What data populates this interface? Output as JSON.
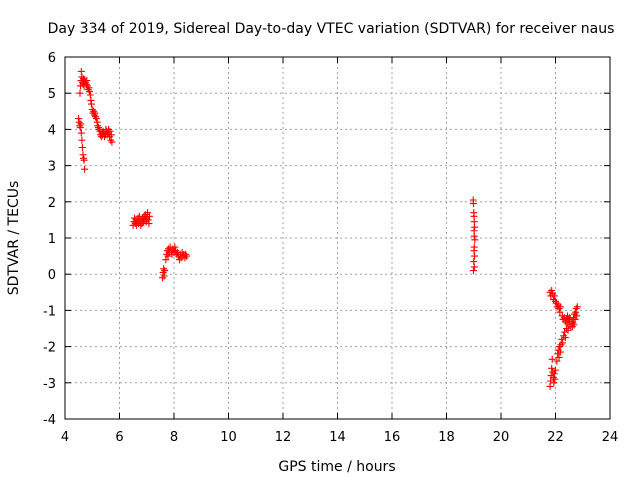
{
  "chart_data": {
    "type": "scatter",
    "title": "Day 334 of 2019, Sidereal Day-to-day VTEC variation (SDTVAR) for receiver naus",
    "xlabel": "GPS time / hours",
    "ylabel": "SDTVAR / TECUs",
    "xlim": [
      4,
      24
    ],
    "ylim": [
      -4,
      6
    ],
    "xticks": [
      4,
      6,
      8,
      10,
      12,
      14,
      16,
      18,
      20,
      22,
      24
    ],
    "yticks": [
      -4,
      -3,
      -2,
      -1,
      0,
      1,
      2,
      3,
      4,
      5,
      6
    ],
    "grid": true,
    "marker": "plus",
    "color": "#ff0000",
    "series": [
      {
        "name": "naus",
        "points": [
          [
            4.5,
            4.3
          ],
          [
            4.52,
            4.2
          ],
          [
            4.54,
            4.1
          ],
          [
            4.56,
            4.05
          ],
          [
            4.58,
            4.15
          ],
          [
            4.6,
            3.9
          ],
          [
            4.62,
            3.7
          ],
          [
            4.64,
            3.5
          ],
          [
            4.66,
            3.3
          ],
          [
            4.68,
            3.2
          ],
          [
            4.7,
            3.15
          ],
          [
            4.72,
            2.9
          ],
          [
            4.55,
            5.0
          ],
          [
            4.57,
            5.2
          ],
          [
            4.59,
            5.35
          ],
          [
            4.6,
            5.6
          ],
          [
            4.62,
            5.45
          ],
          [
            4.64,
            5.3
          ],
          [
            4.66,
            5.25
          ],
          [
            4.68,
            5.4
          ],
          [
            4.7,
            5.2
          ],
          [
            4.72,
            5.35
          ],
          [
            4.75,
            5.3
          ],
          [
            4.78,
            5.25
          ],
          [
            4.8,
            5.35
          ],
          [
            4.82,
            5.2
          ],
          [
            4.85,
            5.1
          ],
          [
            4.88,
            5.15
          ],
          [
            4.9,
            5.05
          ],
          [
            4.93,
            4.95
          ],
          [
            4.95,
            4.8
          ],
          [
            4.97,
            4.7
          ],
          [
            5.0,
            4.55
          ],
          [
            5.03,
            4.45
          ],
          [
            5.05,
            4.5
          ],
          [
            5.08,
            4.4
          ],
          [
            5.1,
            4.45
          ],
          [
            5.12,
            4.35
          ],
          [
            5.15,
            4.3
          ],
          [
            5.18,
            4.2
          ],
          [
            5.2,
            4.1
          ],
          [
            5.23,
            4.05
          ],
          [
            5.25,
            4.0
          ],
          [
            5.28,
            3.95
          ],
          [
            5.3,
            3.85
          ],
          [
            5.33,
            3.8
          ],
          [
            5.36,
            3.9
          ],
          [
            5.38,
            3.85
          ],
          [
            5.4,
            3.95
          ],
          [
            5.43,
            3.9
          ],
          [
            5.45,
            3.8
          ],
          [
            5.48,
            3.85
          ],
          [
            5.5,
            4.0
          ],
          [
            5.53,
            3.95
          ],
          [
            5.55,
            3.85
          ],
          [
            5.58,
            3.9
          ],
          [
            5.6,
            4.0
          ],
          [
            5.63,
            3.8
          ],
          [
            5.65,
            3.95
          ],
          [
            5.68,
            3.7
          ],
          [
            5.7,
            3.85
          ],
          [
            5.72,
            3.65
          ],
          [
            6.5,
            1.35
          ],
          [
            6.53,
            1.45
          ],
          [
            6.55,
            1.55
          ],
          [
            6.58,
            1.4
          ],
          [
            6.6,
            1.5
          ],
          [
            6.63,
            1.35
          ],
          [
            6.65,
            1.45
          ],
          [
            6.68,
            1.55
          ],
          [
            6.7,
            1.4
          ],
          [
            6.73,
            1.6
          ],
          [
            6.75,
            1.45
          ],
          [
            6.78,
            1.35
          ],
          [
            6.8,
            1.5
          ],
          [
            6.83,
            1.4
          ],
          [
            6.85,
            1.55
          ],
          [
            6.88,
            1.45
          ],
          [
            6.9,
            1.6
          ],
          [
            6.93,
            1.5
          ],
          [
            6.95,
            1.65
          ],
          [
            6.98,
            1.45
          ],
          [
            7.0,
            1.55
          ],
          [
            7.03,
            1.7
          ],
          [
            7.05,
            1.5
          ],
          [
            7.08,
            1.4
          ],
          [
            7.1,
            1.6
          ],
          [
            7.58,
            -0.1
          ],
          [
            7.6,
            0.05
          ],
          [
            7.62,
            0.15
          ],
          [
            7.64,
            -0.05
          ],
          [
            7.66,
            0.1
          ],
          [
            7.7,
            0.4
          ],
          [
            7.73,
            0.55
          ],
          [
            7.75,
            0.65
          ],
          [
            7.78,
            0.5
          ],
          [
            7.8,
            0.7
          ],
          [
            7.83,
            0.6
          ],
          [
            7.86,
            0.75
          ],
          [
            7.9,
            0.65
          ],
          [
            7.93,
            0.55
          ],
          [
            7.96,
            0.7
          ],
          [
            8.0,
            0.6
          ],
          [
            8.03,
            0.75
          ],
          [
            8.06,
            0.65
          ],
          [
            8.1,
            0.55
          ],
          [
            8.13,
            0.6
          ],
          [
            8.16,
            0.5
          ],
          [
            8.2,
            0.4
          ],
          [
            8.23,
            0.55
          ],
          [
            8.26,
            0.45
          ],
          [
            8.3,
            0.6
          ],
          [
            8.33,
            0.5
          ],
          [
            8.36,
            0.55
          ],
          [
            8.4,
            0.45
          ],
          [
            8.43,
            0.55
          ],
          [
            8.46,
            0.5
          ],
          [
            18.98,
            2.05
          ],
          [
            18.99,
            1.95
          ],
          [
            19.0,
            1.7
          ],
          [
            19.01,
            1.6
          ],
          [
            19.02,
            1.45
          ],
          [
            19.03,
            1.3
          ],
          [
            19.01,
            1.2
          ],
          [
            19.02,
            1.05
          ],
          [
            19.04,
            0.95
          ],
          [
            19.02,
            0.75
          ],
          [
            19.01,
            0.65
          ],
          [
            19.03,
            0.5
          ],
          [
            19.0,
            0.35
          ],
          [
            19.02,
            0.2
          ],
          [
            18.99,
            0.1
          ],
          [
            21.8,
            -3.1
          ],
          [
            21.82,
            -2.95
          ],
          [
            21.84,
            -2.8
          ],
          [
            21.86,
            -2.6
          ],
          [
            21.88,
            -2.35
          ],
          [
            21.9,
            -2.7
          ],
          [
            21.92,
            -2.85
          ],
          [
            21.94,
            -3.0
          ],
          [
            21.96,
            -2.75
          ],
          [
            21.98,
            -2.9
          ],
          [
            22.0,
            -2.65
          ],
          [
            21.8,
            -0.5
          ],
          [
            21.83,
            -0.6
          ],
          [
            21.86,
            -0.45
          ],
          [
            21.9,
            -0.55
          ],
          [
            21.93,
            -0.7
          ],
          [
            21.96,
            -0.6
          ],
          [
            22.0,
            -0.75
          ],
          [
            22.03,
            -0.8
          ],
          [
            22.06,
            -0.9
          ],
          [
            22.1,
            -0.85
          ],
          [
            22.13,
            -0.95
          ],
          [
            22.16,
            -1.05
          ],
          [
            22.18,
            -0.9
          ],
          [
            22.05,
            -2.4
          ],
          [
            22.08,
            -2.2
          ],
          [
            22.1,
            -2.1
          ],
          [
            22.13,
            -2.3
          ],
          [
            22.15,
            -2.0
          ],
          [
            22.18,
            -2.15
          ],
          [
            22.2,
            -1.95
          ],
          [
            22.23,
            -1.8
          ],
          [
            22.26,
            -1.9
          ],
          [
            22.3,
            -1.7
          ],
          [
            22.33,
            -1.6
          ],
          [
            22.36,
            -1.75
          ],
          [
            22.4,
            -1.5
          ],
          [
            22.43,
            -1.35
          ],
          [
            22.46,
            -1.55
          ],
          [
            22.5,
            -1.4
          ],
          [
            22.53,
            -1.25
          ],
          [
            22.56,
            -1.45
          ],
          [
            22.6,
            -1.3
          ],
          [
            22.25,
            -1.15
          ],
          [
            22.28,
            -1.25
          ],
          [
            22.32,
            -1.2
          ],
          [
            22.36,
            -1.3
          ],
          [
            22.4,
            -1.25
          ],
          [
            22.44,
            -1.15
          ],
          [
            22.48,
            -1.25
          ],
          [
            22.52,
            -1.2
          ],
          [
            22.62,
            -1.45
          ],
          [
            22.64,
            -1.35
          ],
          [
            22.66,
            -1.2
          ],
          [
            22.68,
            -1.4
          ],
          [
            22.7,
            -1.1
          ],
          [
            22.72,
            -1.25
          ],
          [
            22.74,
            -1.05
          ],
          [
            22.76,
            -0.95
          ],
          [
            22.78,
            -1.15
          ],
          [
            22.8,
            -0.9
          ]
        ]
      }
    ]
  }
}
